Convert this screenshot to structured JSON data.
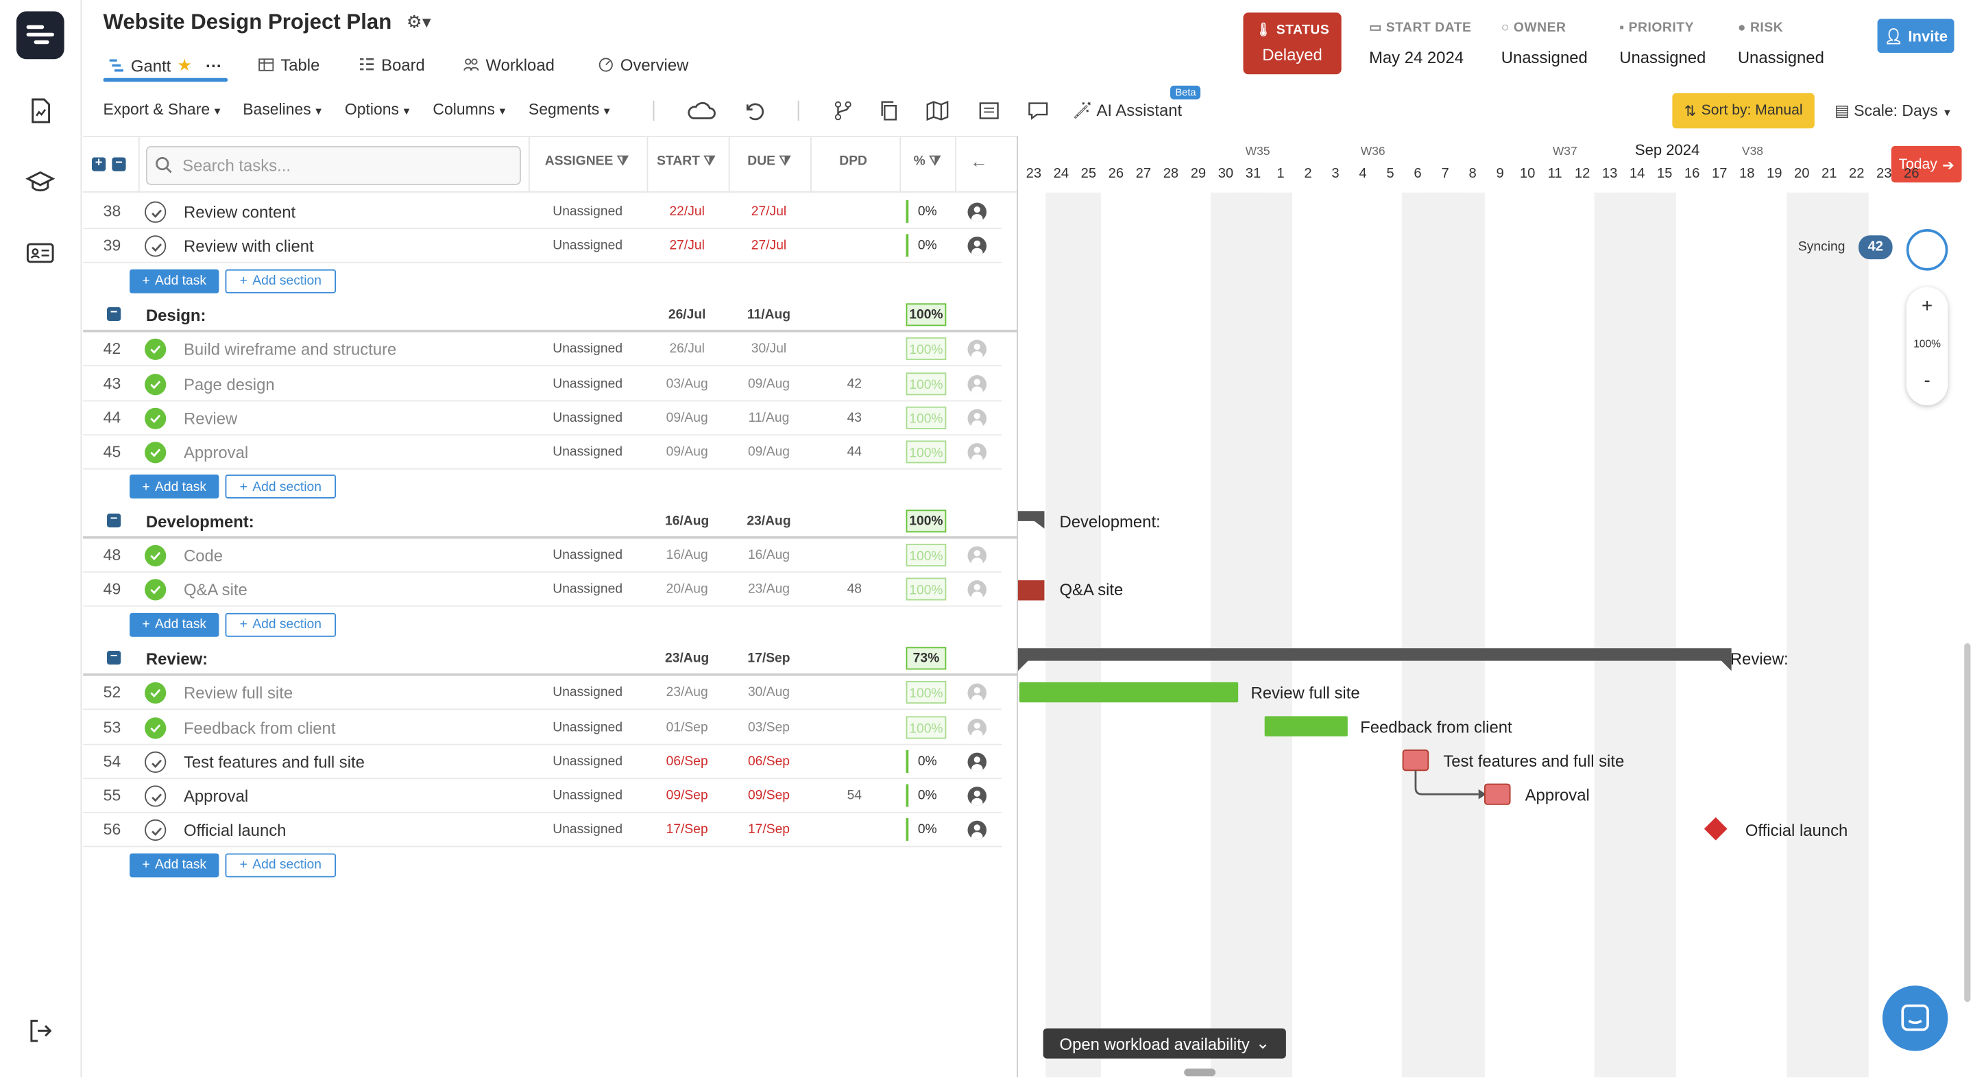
{
  "header": {
    "title": "Website Design Project Plan",
    "view_tabs": [
      {
        "label": "Gantt",
        "icon": "gantt-icon"
      },
      {
        "label": "Table",
        "icon": "table-icon"
      },
      {
        "label": "Board",
        "icon": "board-icon"
      },
      {
        "label": "Workload",
        "icon": "workload-icon"
      },
      {
        "label": "Overview",
        "icon": "overview-icon"
      }
    ],
    "status": {
      "label": "STATUS",
      "value": "Delayed",
      "color": "#c0392b"
    },
    "start_date": {
      "label": "START DATE",
      "value": "May 24 2024"
    },
    "owner": {
      "label": "OWNER",
      "value": "Unassigned"
    },
    "priority": {
      "label": "PRIORITY",
      "value": "Unassigned"
    },
    "risk": {
      "label": "RISK",
      "value": "Unassigned"
    },
    "invite_label": "Invite"
  },
  "toolbar": {
    "export": "Export & Share",
    "baselines": "Baselines",
    "options": "Options",
    "columns": "Columns",
    "segments": "Segments",
    "ai_assistant": "AI Assistant",
    "beta": "Beta",
    "sort_by": "Sort by: Manual",
    "scale": "Scale: Days"
  },
  "grid": {
    "search_placeholder": "Search tasks...",
    "columns": {
      "assignee": "ASSIGNEE",
      "start": "START",
      "due": "DUE",
      "dpd": "DPD",
      "pct": "%"
    },
    "add_task": "Add task",
    "add_section": "Add section",
    "rows": [
      {
        "type": "task",
        "num": "38",
        "name": "Review content",
        "assignee": "Unassigned",
        "start": "22/Jul",
        "due": "27/Jul",
        "dpd": "",
        "pct": "0%",
        "done": false,
        "overdue": true
      },
      {
        "type": "task",
        "num": "39",
        "name": "Review with client",
        "assignee": "Unassigned",
        "start": "27/Jul",
        "due": "27/Jul",
        "dpd": "",
        "pct": "0%",
        "done": false,
        "overdue": true
      },
      {
        "type": "add"
      },
      {
        "type": "section",
        "name": "Design:",
        "start": "26/Jul",
        "due": "11/Aug",
        "pct": "100%"
      },
      {
        "type": "task",
        "num": "42",
        "name": "Build wireframe and structure",
        "assignee": "Unassigned",
        "start": "26/Jul",
        "due": "30/Jul",
        "dpd": "",
        "pct": "100%",
        "done": true
      },
      {
        "type": "task",
        "num": "43",
        "name": "Page design",
        "assignee": "Unassigned",
        "start": "03/Aug",
        "due": "09/Aug",
        "dpd": "42",
        "pct": "100%",
        "done": true
      },
      {
        "type": "task",
        "num": "44",
        "name": "Review",
        "assignee": "Unassigned",
        "start": "09/Aug",
        "due": "11/Aug",
        "dpd": "43",
        "pct": "100%",
        "done": true
      },
      {
        "type": "task",
        "num": "45",
        "name": "Approval",
        "assignee": "Unassigned",
        "start": "09/Aug",
        "due": "09/Aug",
        "dpd": "44",
        "pct": "100%",
        "done": true
      },
      {
        "type": "add"
      },
      {
        "type": "section",
        "name": "Development:",
        "start": "16/Aug",
        "due": "23/Aug",
        "pct": "100%"
      },
      {
        "type": "task",
        "num": "48",
        "name": "Code",
        "assignee": "Unassigned",
        "start": "16/Aug",
        "due": "16/Aug",
        "dpd": "",
        "pct": "100%",
        "done": true
      },
      {
        "type": "task",
        "num": "49",
        "name": "Q&A site",
        "assignee": "Unassigned",
        "start": "20/Aug",
        "due": "23/Aug",
        "dpd": "48",
        "pct": "100%",
        "done": true
      },
      {
        "type": "add"
      },
      {
        "type": "section",
        "name": "Review:",
        "start": "23/Aug",
        "due": "17/Sep",
        "pct": "73%"
      },
      {
        "type": "task",
        "num": "52",
        "name": "Review full site",
        "assignee": "Unassigned",
        "start": "23/Aug",
        "due": "30/Aug",
        "dpd": "",
        "pct": "100%",
        "done": true
      },
      {
        "type": "task",
        "num": "53",
        "name": "Feedback from client",
        "assignee": "Unassigned",
        "start": "01/Sep",
        "due": "03/Sep",
        "dpd": "",
        "pct": "100%",
        "done": true
      },
      {
        "type": "task",
        "num": "54",
        "name": "Test features and full site",
        "assignee": "Unassigned",
        "start": "06/Sep",
        "due": "06/Sep",
        "dpd": "",
        "pct": "0%",
        "done": false,
        "overdue": true
      },
      {
        "type": "task",
        "num": "55",
        "name": "Approval",
        "assignee": "Unassigned",
        "start": "09/Sep",
        "due": "09/Sep",
        "dpd": "54",
        "pct": "0%",
        "done": false,
        "overdue": true
      },
      {
        "type": "task",
        "num": "56",
        "name": "Official launch",
        "assignee": "Unassigned",
        "start": "17/Sep",
        "due": "17/Sep",
        "dpd": "",
        "pct": "0%",
        "done": false,
        "overdue": true
      },
      {
        "type": "add"
      }
    ]
  },
  "gantt": {
    "weeks": [
      "W35",
      "W36",
      "W37",
      "V38"
    ],
    "month_label": "Sep 2024",
    "days": [
      "23",
      "24",
      "25",
      "26",
      "27",
      "28",
      "29",
      "30",
      "31",
      "1",
      "2",
      "3",
      "4",
      "5",
      "6",
      "7",
      "8",
      "9",
      "10",
      "11",
      "12",
      "13",
      "14",
      "15",
      "16",
      "17",
      "18",
      "19",
      "20",
      "21",
      "22",
      "23",
      "26"
    ],
    "today_label": "Today",
    "syncing_label": "Syncing",
    "sync_count": "42",
    "zoom_plus": "+",
    "zoom_level": "100%",
    "zoom_minus": "-",
    "workload_label": "Open workload availability",
    "labels": {
      "development": "Development:",
      "qa": "Q&A site",
      "review": "Review:",
      "review_full": "Review full site",
      "feedback": "Feedback from client",
      "test": "Test features and full site",
      "approval": "Approval",
      "launch": "Official launch"
    },
    "colors": {
      "done": "#67c23a",
      "overdue": "#e57373",
      "section": "#555555",
      "milestone": "#d32f2f",
      "qa_bar": "#b03a2e"
    }
  }
}
